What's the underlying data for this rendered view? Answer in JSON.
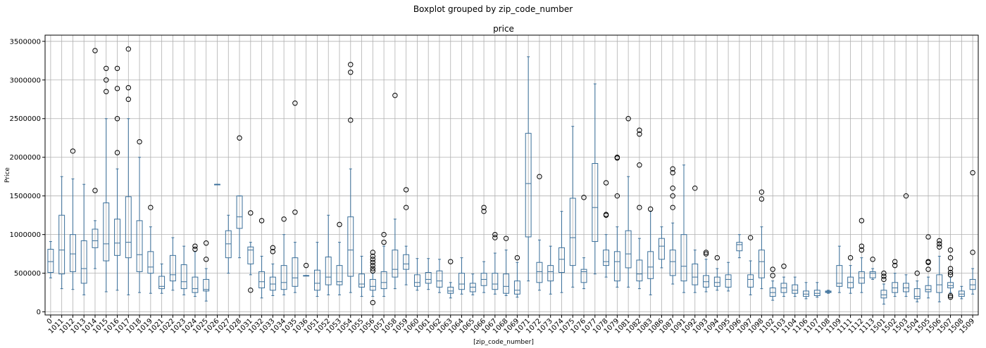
{
  "chart_data": {
    "type": "boxplot",
    "suptitle": "Boxplot grouped by zip_code_number",
    "title": "price",
    "xlabel": "[zip_code_number]",
    "ylabel": "Price",
    "ylim": [
      -40000,
      3580000
    ],
    "yticks": [
      0,
      500000,
      1000000,
      1500000,
      2000000,
      2500000,
      3000000,
      3500000
    ],
    "yticklabels": [
      "0",
      "500000",
      "1000000",
      "1500000",
      "2000000",
      "2500000",
      "3000000",
      "3500000"
    ],
    "grid": true,
    "colors": {
      "box": "#3a6f9a",
      "median": "#3a6f9a",
      "flier": "#000000",
      "grid": "#b0b0b0",
      "axes": "#000000"
    },
    "categories": [
      "0",
      "1011",
      "1012",
      "1013",
      "1014",
      "1015",
      "1016",
      "1017",
      "1018",
      "1019",
      "1021",
      "1022",
      "1023",
      "1024",
      "1025",
      "1026",
      "1027",
      "1028",
      "1031",
      "1032",
      "1033",
      "1034",
      "1035",
      "1036",
      "1051",
      "1052",
      "1053",
      "1054",
      "1055",
      "1056",
      "1057",
      "1058",
      "1059",
      "1060",
      "1061",
      "1062",
      "1063",
      "1064",
      "1065",
      "1066",
      "1067",
      "1068",
      "1069",
      "1071",
      "1072",
      "1073",
      "1074",
      "1075",
      "1076",
      "1077",
      "1078",
      "1079",
      "1081",
      "1082",
      "1083",
      "1086",
      "1087",
      "1091",
      "1092",
      "1093",
      "1094",
      "1095",
      "1096",
      "1097",
      "1098",
      "1102",
      "1103",
      "1104",
      "1106",
      "1107",
      "1108",
      "1109",
      "1111",
      "1112",
      "1113",
      "1501",
      "1502",
      "1503",
      "1504",
      "1505",
      "1506",
      "1507",
      "1508",
      "1509"
    ],
    "boxes": [
      {
        "label": "0",
        "whislo": 440000,
        "q1": 510000,
        "med": 650000,
        "q3": 810000,
        "whishi": 910000,
        "fliers": []
      },
      {
        "label": "1011",
        "whislo": 300000,
        "q1": 490000,
        "med": 800000,
        "q3": 1250000,
        "whishi": 1750000,
        "fliers": []
      },
      {
        "label": "1012",
        "whislo": 290000,
        "q1": 520000,
        "med": 750000,
        "q3": 1000000,
        "whishi": 1720000,
        "fliers": [
          2080000
        ]
      },
      {
        "label": "1013",
        "whislo": 220000,
        "q1": 370000,
        "med": 560000,
        "q3": 920000,
        "whishi": 1650000,
        "fliers": []
      },
      {
        "label": "1014",
        "whislo": 560000,
        "q1": 830000,
        "med": 920000,
        "q3": 1070000,
        "whishi": 1180000,
        "fliers": [
          1570000,
          3380000
        ]
      },
      {
        "label": "1015",
        "whislo": 260000,
        "q1": 660000,
        "med": 880000,
        "q3": 1410000,
        "whishi": 2500000,
        "fliers": [
          2850000,
          3000000,
          3150000
        ]
      },
      {
        "label": "1016",
        "whislo": 280000,
        "q1": 730000,
        "med": 890000,
        "q3": 1200000,
        "whishi": 1850000,
        "fliers": [
          2060000,
          2500000,
          2890000,
          3150000
        ]
      },
      {
        "label": "1017",
        "whislo": 220000,
        "q1": 700000,
        "med": 900000,
        "q3": 1490000,
        "whishi": 2500000,
        "fliers": [
          2750000,
          2900000,
          3400000
        ]
      },
      {
        "label": "1018",
        "whislo": 250000,
        "q1": 520000,
        "med": 740000,
        "q3": 1180000,
        "whishi": 2000000,
        "fliers": [
          2200000
        ]
      },
      {
        "label": "1019",
        "whislo": 240000,
        "q1": 500000,
        "med": 580000,
        "q3": 780000,
        "whishi": 1100000,
        "fliers": [
          1350000
        ]
      },
      {
        "label": "1021",
        "whislo": 240000,
        "q1": 300000,
        "med": 330000,
        "q3": 460000,
        "whishi": 620000,
        "fliers": []
      },
      {
        "label": "1022",
        "whislo": 280000,
        "q1": 400000,
        "med": 480000,
        "q3": 730000,
        "whishi": 960000,
        "fliers": []
      },
      {
        "label": "1023",
        "whislo": 220000,
        "q1": 300000,
        "med": 390000,
        "q3": 610000,
        "whishi": 850000,
        "fliers": []
      },
      {
        "label": "1024",
        "whislo": 200000,
        "q1": 250000,
        "med": 300000,
        "q3": 450000,
        "whishi": 780000,
        "fliers": [
          810000,
          850000
        ]
      },
      {
        "label": "1025",
        "whislo": 140000,
        "q1": 270000,
        "med": 290000,
        "q3": 420000,
        "whishi": 560000,
        "fliers": [
          680000,
          890000
        ]
      },
      {
        "label": "1026",
        "whislo": 1650000,
        "q1": 1650000,
        "med": 1650000,
        "q3": 1650000,
        "whishi": 1650000,
        "fliers": []
      },
      {
        "label": "1027",
        "whislo": 500000,
        "q1": 700000,
        "med": 880000,
        "q3": 1050000,
        "whishi": 1250000,
        "fliers": []
      },
      {
        "label": "1028",
        "whislo": 700000,
        "q1": 1080000,
        "med": 1230000,
        "q3": 1500000,
        "whishi": 1500000,
        "fliers": [
          2250000
        ]
      },
      {
        "label": "1031",
        "whislo": 480000,
        "q1": 620000,
        "med": 800000,
        "q3": 840000,
        "whishi": 900000,
        "fliers": [
          280000,
          1280000
        ]
      },
      {
        "label": "1032",
        "whislo": 180000,
        "q1": 310000,
        "med": 390000,
        "q3": 520000,
        "whishi": 720000,
        "fliers": [
          1180000
        ]
      },
      {
        "label": "1033",
        "whislo": 210000,
        "q1": 280000,
        "med": 360000,
        "q3": 450000,
        "whishi": 620000,
        "fliers": [
          780000,
          830000
        ]
      },
      {
        "label": "1034",
        "whislo": 220000,
        "q1": 290000,
        "med": 380000,
        "q3": 600000,
        "whishi": 1000000,
        "fliers": [
          1200000
        ]
      },
      {
        "label": "1035",
        "whislo": 250000,
        "q1": 330000,
        "med": 440000,
        "q3": 700000,
        "whishi": 900000,
        "fliers": [
          1290000,
          2700000
        ]
      },
      {
        "label": "1036",
        "whislo": 470000,
        "q1": 470000,
        "med": 470000,
        "q3": 470000,
        "whishi": 470000,
        "fliers": [
          600000
        ]
      },
      {
        "label": "1051",
        "whislo": 200000,
        "q1": 280000,
        "med": 370000,
        "q3": 540000,
        "whishi": 900000,
        "fliers": []
      },
      {
        "label": "1052",
        "whislo": 220000,
        "q1": 350000,
        "med": 450000,
        "q3": 710000,
        "whishi": 1250000,
        "fliers": []
      },
      {
        "label": "1053",
        "whislo": 220000,
        "q1": 350000,
        "med": 390000,
        "q3": 600000,
        "whishi": 900000,
        "fliers": [
          1130000
        ]
      },
      {
        "label": "1054",
        "whislo": 250000,
        "q1": 460000,
        "med": 800000,
        "q3": 1230000,
        "whishi": 1850000,
        "fliers": [
          2480000,
          3100000,
          3200000
        ]
      },
      {
        "label": "1055",
        "whislo": 200000,
        "q1": 320000,
        "med": 360000,
        "q3": 490000,
        "whishi": 720000,
        "fliers": []
      },
      {
        "label": "1056",
        "whislo": 200000,
        "q1": 280000,
        "med": 330000,
        "q3": 420000,
        "whishi": 500000,
        "fliers": [
          120000,
          530000,
          560000,
          600000,
          640000,
          680000,
          720000,
          770000
        ]
      },
      {
        "label": "1057",
        "whislo": 200000,
        "q1": 300000,
        "med": 380000,
        "q3": 520000,
        "whishi": 850000,
        "fliers": [
          900000,
          1000000
        ]
      },
      {
        "label": "1058",
        "whislo": 300000,
        "q1": 450000,
        "med": 550000,
        "q3": 800000,
        "whishi": 1200000,
        "fliers": [
          2800000
        ]
      },
      {
        "label": "1059",
        "whislo": 350000,
        "q1": 550000,
        "med": 620000,
        "q3": 740000,
        "whishi": 850000,
        "fliers": [
          1350000,
          1580000
        ]
      },
      {
        "label": "1060",
        "whislo": 280000,
        "q1": 330000,
        "med": 380000,
        "q3": 480000,
        "whishi": 690000,
        "fliers": []
      },
      {
        "label": "1061",
        "whislo": 290000,
        "q1": 370000,
        "med": 420000,
        "q3": 510000,
        "whishi": 690000,
        "fliers": []
      },
      {
        "label": "1062",
        "whislo": 250000,
        "q1": 320000,
        "med": 400000,
        "q3": 530000,
        "whishi": 680000,
        "fliers": []
      },
      {
        "label": "1063",
        "whislo": 180000,
        "q1": 240000,
        "med": 270000,
        "q3": 320000,
        "whishi": 380000,
        "fliers": [
          650000
        ]
      },
      {
        "label": "1064",
        "whislo": 230000,
        "q1": 290000,
        "med": 360000,
        "q3": 500000,
        "whishi": 700000,
        "fliers": []
      },
      {
        "label": "1065",
        "whislo": 220000,
        "q1": 260000,
        "med": 320000,
        "q3": 370000,
        "whishi": 490000,
        "fliers": []
      },
      {
        "label": "1066",
        "whislo": 250000,
        "q1": 340000,
        "med": 420000,
        "q3": 500000,
        "whishi": 650000,
        "fliers": [
          1300000,
          1350000
        ]
      },
      {
        "label": "1067",
        "whislo": 230000,
        "q1": 290000,
        "med": 360000,
        "q3": 500000,
        "whishi": 760000,
        "fliers": [
          960000,
          1000000
        ]
      },
      {
        "label": "1068",
        "whislo": 210000,
        "q1": 240000,
        "med": 330000,
        "q3": 490000,
        "whishi": 800000,
        "fliers": [
          950000
        ]
      },
      {
        "label": "1069",
        "whislo": 190000,
        "q1": 230000,
        "med": 280000,
        "q3": 400000,
        "whishi": 640000,
        "fliers": [
          700000
        ]
      },
      {
        "label": "1071",
        "whislo": 400000,
        "q1": 970000,
        "med": 1660000,
        "q3": 2310000,
        "whishi": 3300000,
        "fliers": []
      },
      {
        "label": "1072",
        "whislo": 280000,
        "q1": 380000,
        "med": 520000,
        "q3": 640000,
        "whishi": 930000,
        "fliers": [
          1750000
        ]
      },
      {
        "label": "1073",
        "whislo": 230000,
        "q1": 400000,
        "med": 520000,
        "q3": 600000,
        "whishi": 850000,
        "fliers": []
      },
      {
        "label": "1074",
        "whislo": 250000,
        "q1": 510000,
        "med": 680000,
        "q3": 830000,
        "whishi": 1300000,
        "fliers": []
      },
      {
        "label": "1075",
        "whislo": 320000,
        "q1": 600000,
        "med": 960000,
        "q3": 1470000,
        "whishi": 2400000,
        "fliers": []
      },
      {
        "label": "1076",
        "whislo": 300000,
        "q1": 380000,
        "med": 520000,
        "q3": 550000,
        "whishi": 700000,
        "fliers": [
          1480000
        ]
      },
      {
        "label": "1077",
        "whislo": 490000,
        "q1": 910000,
        "med": 1350000,
        "q3": 1920000,
        "whishi": 2950000,
        "fliers": []
      },
      {
        "label": "1078",
        "whislo": 450000,
        "q1": 600000,
        "med": 650000,
        "q3": 800000,
        "whishi": 1000000,
        "fliers": [
          1250000,
          1260000,
          1670000
        ]
      },
      {
        "label": "1079",
        "whislo": 320000,
        "q1": 400000,
        "med": 650000,
        "q3": 780000,
        "whishi": 1100000,
        "fliers": [
          1500000,
          1990000,
          2000000
        ]
      },
      {
        "label": "1081",
        "whislo": 320000,
        "q1": 570000,
        "med": 750000,
        "q3": 1050000,
        "whishi": 1750000,
        "fliers": [
          2500000
        ]
      },
      {
        "label": "1082",
        "whislo": 300000,
        "q1": 400000,
        "med": 490000,
        "q3": 670000,
        "whishi": 950000,
        "fliers": [
          1350000,
          1900000,
          2300000,
          2350000
        ]
      },
      {
        "label": "1083",
        "whislo": 220000,
        "q1": 430000,
        "med": 580000,
        "q3": 780000,
        "whishi": 1300000,
        "fliers": [
          1330000
        ]
      },
      {
        "label": "1086",
        "whislo": 570000,
        "q1": 680000,
        "med": 850000,
        "q3": 950000,
        "whishi": 1100000,
        "fliers": []
      },
      {
        "label": "1087",
        "whislo": 360000,
        "q1": 470000,
        "med": 650000,
        "q3": 800000,
        "whishi": 1150000,
        "fliers": [
          1350000,
          1500000,
          1600000,
          1800000,
          1850000
        ]
      },
      {
        "label": "1091",
        "whislo": 250000,
        "q1": 400000,
        "med": 590000,
        "q3": 1000000,
        "whishi": 1900000,
        "fliers": []
      },
      {
        "label": "1092",
        "whislo": 250000,
        "q1": 350000,
        "med": 450000,
        "q3": 620000,
        "whishi": 800000,
        "fliers": [
          1600000
        ]
      },
      {
        "label": "1093",
        "whislo": 260000,
        "q1": 320000,
        "med": 390000,
        "q3": 470000,
        "whishi": 680000,
        "fliers": [
          750000,
          770000
        ]
      },
      {
        "label": "1094",
        "whislo": 280000,
        "q1": 330000,
        "med": 380000,
        "q3": 450000,
        "whishi": 560000,
        "fliers": [
          700000
        ]
      },
      {
        "label": "1095",
        "whislo": 270000,
        "q1": 320000,
        "med": 420000,
        "q3": 480000,
        "whishi": 640000,
        "fliers": []
      },
      {
        "label": "1096",
        "whislo": 700000,
        "q1": 790000,
        "med": 870000,
        "q3": 900000,
        "whishi": 1000000,
        "fliers": []
      },
      {
        "label": "1097",
        "whislo": 220000,
        "q1": 320000,
        "med": 420000,
        "q3": 480000,
        "whishi": 660000,
        "fliers": [
          960000
        ]
      },
      {
        "label": "1098",
        "whislo": 300000,
        "q1": 440000,
        "med": 650000,
        "q3": 800000,
        "whishi": 1100000,
        "fliers": [
          1460000,
          1550000
        ]
      },
      {
        "label": "1102",
        "whislo": 150000,
        "q1": 200000,
        "med": 250000,
        "q3": 310000,
        "whishi": 400000,
        "fliers": [
          470000,
          550000
        ]
      },
      {
        "label": "1103",
        "whislo": 200000,
        "q1": 250000,
        "med": 310000,
        "q3": 370000,
        "whishi": 450000,
        "fliers": [
          590000
        ]
      },
      {
        "label": "1104",
        "whislo": 200000,
        "q1": 240000,
        "med": 280000,
        "q3": 350000,
        "whishi": 450000,
        "fliers": []
      },
      {
        "label": "1106",
        "whislo": 170000,
        "q1": 200000,
        "med": 230000,
        "q3": 270000,
        "whishi": 380000,
        "fliers": []
      },
      {
        "label": "1107",
        "whislo": 190000,
        "q1": 210000,
        "med": 240000,
        "q3": 280000,
        "whishi": 380000,
        "fliers": []
      },
      {
        "label": "1108",
        "whislo": 240000,
        "q1": 250000,
        "med": 260000,
        "q3": 270000,
        "whishi": 280000,
        "fliers": []
      },
      {
        "label": "1109",
        "whislo": 250000,
        "q1": 330000,
        "med": 370000,
        "q3": 600000,
        "whishi": 850000,
        "fliers": []
      },
      {
        "label": "1111",
        "whislo": 240000,
        "q1": 310000,
        "med": 380000,
        "q3": 450000,
        "whishi": 600000,
        "fliers": [
          700000
        ]
      },
      {
        "label": "1112",
        "whislo": 250000,
        "q1": 370000,
        "med": 440000,
        "q3": 520000,
        "whishi": 700000,
        "fliers": [
          800000,
          850000,
          1180000
        ]
      },
      {
        "label": "1113",
        "whislo": 420000,
        "q1": 440000,
        "med": 500000,
        "q3": 520000,
        "whishi": 560000,
        "fliers": [
          680000
        ]
      },
      {
        "label": "1501",
        "whislo": 100000,
        "q1": 180000,
        "med": 220000,
        "q3": 280000,
        "whishi": 360000,
        "fliers": [
          420000,
          460000,
          500000
        ]
      },
      {
        "label": "1502",
        "whislo": 200000,
        "q1": 250000,
        "med": 310000,
        "q3": 380000,
        "whishi": 500000,
        "fliers": [
          600000,
          650000
        ]
      },
      {
        "label": "1503",
        "whislo": 200000,
        "q1": 260000,
        "med": 310000,
        "q3": 370000,
        "whishi": 480000,
        "fliers": [
          1500000
        ]
      },
      {
        "label": "1504",
        "whislo": 130000,
        "q1": 170000,
        "med": 200000,
        "q3": 300000,
        "whishi": 400000,
        "fliers": [
          500000
        ]
      },
      {
        "label": "1505",
        "whislo": 180000,
        "q1": 260000,
        "med": 290000,
        "q3": 340000,
        "whishi": 450000,
        "fliers": [
          550000,
          640000,
          650000,
          970000
        ]
      },
      {
        "label": "1506",
        "whislo": 130000,
        "q1": 250000,
        "med": 350000,
        "q3": 480000,
        "whishi": 720000,
        "fliers": [
          840000,
          880000,
          920000
        ]
      },
      {
        "label": "1507",
        "whislo": 250000,
        "q1": 310000,
        "med": 340000,
        "q3": 380000,
        "whishi": 450000,
        "fliers": [
          190000,
          210000,
          480000,
          510000,
          560000,
          700000,
          800000
        ]
      },
      {
        "label": "1508",
        "whislo": 170000,
        "q1": 200000,
        "med": 230000,
        "q3": 270000,
        "whishi": 330000,
        "fliers": []
      },
      {
        "label": "1509",
        "whislo": 230000,
        "q1": 290000,
        "med": 350000,
        "q3": 420000,
        "whishi": 560000,
        "fliers": [
          770000,
          1800000
        ]
      }
    ]
  }
}
